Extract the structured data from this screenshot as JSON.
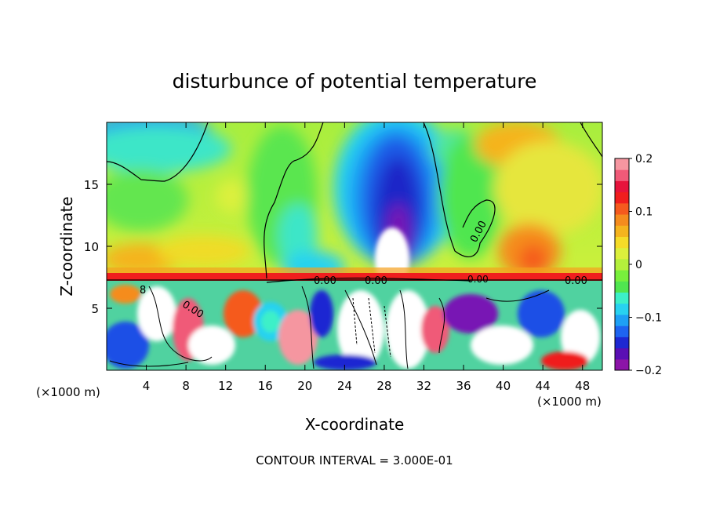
{
  "chart_data": {
    "type": "heatmap",
    "title": "disturbunce of potential temperature",
    "xlabel": "X-coordinate",
    "ylabel": "Z-coordinate",
    "x_unit_label": "(×1000 m)",
    "x_unit_label_right": "(×1000 m)",
    "xlim": [
      0,
      50
    ],
    "ylim": [
      0,
      20
    ],
    "x_ticks": [
      4,
      8,
      12,
      16,
      20,
      24,
      28,
      32,
      36,
      40,
      44,
      48
    ],
    "y_ticks": [
      5,
      10,
      15
    ],
    "colorbar": {
      "min": -0.2,
      "max": 0.2,
      "tick_values": [
        0.2,
        0.1,
        0,
        -0.1,
        -0.2
      ],
      "tick_labels": [
        "0.2",
        "0.1",
        "0",
        "−0.1",
        "−0.2"
      ],
      "colors": [
        "#8c14a8",
        "#5a0fb4",
        "#1e28d2",
        "#1e64f0",
        "#1ea0f5",
        "#28d2f0",
        "#3cf0c8",
        "#50e650",
        "#78f03c",
        "#b4f03c",
        "#dcf03c",
        "#f5dc28",
        "#f5b41e",
        "#f58c1e",
        "#f55a1e",
        "#f01e1e",
        "#e6143c",
        "#f05a78",
        "#f596a0"
      ]
    },
    "inversion_height": 7.2,
    "contour_labels": [
      "0.00",
      "0.00",
      "0.00",
      "0.00",
      "0.00",
      "0.00",
      "8"
    ],
    "footer": "CONTOUR INTERVAL = 3.000E-01"
  }
}
